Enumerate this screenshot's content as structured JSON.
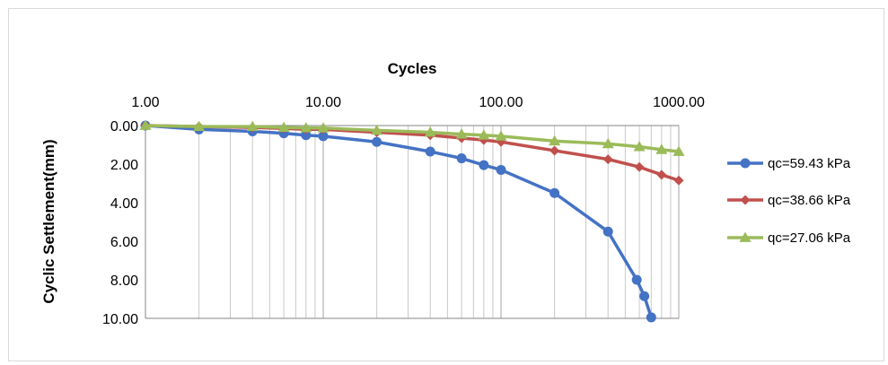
{
  "chart_data": {
    "type": "line",
    "xlabel": "Cycles",
    "ylabel": "Cyclic  Settlement(mm)",
    "x_scale": "log",
    "xlim": [
      1,
      1000
    ],
    "ylim": [
      0,
      10
    ],
    "y_inverted": true,
    "x_axis_position": "top",
    "x_ticks": [
      1,
      10,
      100,
      1000
    ],
    "x_tick_labels": [
      "1.00",
      "10.00",
      "100.00",
      "1000.00"
    ],
    "y_ticks": [
      0,
      2,
      4,
      6,
      8,
      10
    ],
    "y_tick_labels": [
      "0.00",
      "2.00",
      "4.00",
      "6.00",
      "8.00",
      "10.00"
    ],
    "grid": "vertical minor and major log gridlines",
    "legend_position": "right",
    "series": [
      {
        "name": "qc=59.43  kPa",
        "color": "#4472C4",
        "marker": "circle",
        "points": [
          [
            1,
            0.0
          ],
          [
            2,
            0.2
          ],
          [
            4,
            0.3
          ],
          [
            6,
            0.4
          ],
          [
            8,
            0.5
          ],
          [
            10,
            0.55
          ],
          [
            20,
            0.85
          ],
          [
            40,
            1.35
          ],
          [
            60,
            1.7
          ],
          [
            80,
            2.05
          ],
          [
            100,
            2.3
          ],
          [
            200,
            3.5
          ],
          [
            400,
            5.5
          ],
          [
            580,
            8.0
          ],
          [
            640,
            8.85
          ],
          [
            700,
            9.95
          ]
        ]
      },
      {
        "name": "qc=38.66  kPa",
        "color": "#C0504D",
        "marker": "diamond",
        "points": [
          [
            1,
            0.0
          ],
          [
            2,
            0.05
          ],
          [
            4,
            0.1
          ],
          [
            6,
            0.15
          ],
          [
            8,
            0.2
          ],
          [
            10,
            0.2
          ],
          [
            20,
            0.35
          ],
          [
            40,
            0.5
          ],
          [
            60,
            0.65
          ],
          [
            80,
            0.75
          ],
          [
            100,
            0.85
          ],
          [
            200,
            1.3
          ],
          [
            400,
            1.75
          ],
          [
            600,
            2.15
          ],
          [
            800,
            2.55
          ],
          [
            1000,
            2.85
          ]
        ]
      },
      {
        "name": "qc=27.06  kPa",
        "color": "#9BBB59",
        "marker": "triangle",
        "points": [
          [
            1,
            0.0
          ],
          [
            2,
            0.05
          ],
          [
            4,
            0.05
          ],
          [
            6,
            0.1
          ],
          [
            8,
            0.12
          ],
          [
            10,
            0.13
          ],
          [
            20,
            0.25
          ],
          [
            40,
            0.35
          ],
          [
            60,
            0.45
          ],
          [
            80,
            0.5
          ],
          [
            100,
            0.55
          ],
          [
            200,
            0.8
          ],
          [
            400,
            0.95
          ],
          [
            600,
            1.1
          ],
          [
            800,
            1.25
          ],
          [
            1000,
            1.35
          ]
        ]
      }
    ]
  }
}
